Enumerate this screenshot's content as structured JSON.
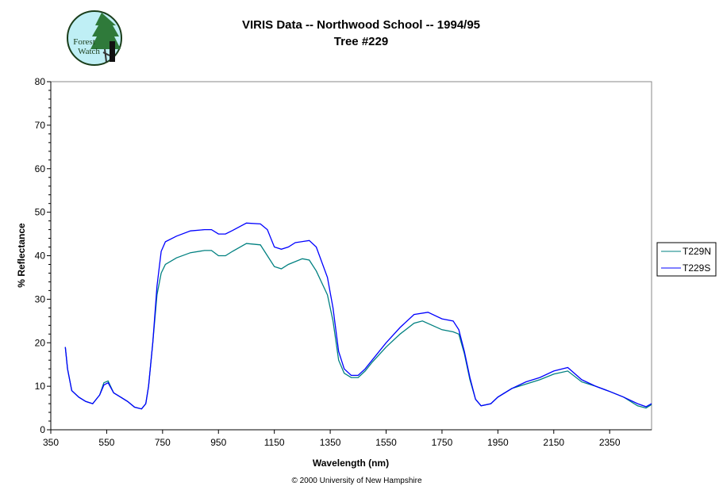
{
  "logo": {
    "text": "Forest Watch"
  },
  "footer": "© 2000 University of New Hampshire",
  "chart_data": {
    "type": "line",
    "title": "VIRIS Data -- Northwood School -- 1994/95",
    "subtitle": "Tree #229",
    "xlabel": "Wavelength (nm)",
    "ylabel": "% Reflectance",
    "xlim": [
      350,
      2500
    ],
    "ylim": [
      0,
      80
    ],
    "xticks": [
      350,
      550,
      750,
      950,
      1150,
      1350,
      1550,
      1750,
      1950,
      2150,
      2350
    ],
    "yticks": [
      0,
      10,
      20,
      30,
      40,
      50,
      60,
      70,
      80
    ],
    "grid": false,
    "legend": "right",
    "series": [
      {
        "name": "T229N",
        "color": "#008080",
        "x": [
          402,
          410,
          425,
          450,
          475,
          500,
          525,
          540,
          555,
          575,
          600,
          625,
          650,
          675,
          690,
          700,
          715,
          730,
          745,
          760,
          800,
          850,
          900,
          925,
          950,
          975,
          1000,
          1050,
          1100,
          1125,
          1150,
          1175,
          1200,
          1250,
          1275,
          1300,
          1340,
          1360,
          1380,
          1400,
          1425,
          1450,
          1475,
          1500,
          1550,
          1600,
          1650,
          1680,
          1750,
          1790,
          1810,
          1830,
          1850,
          1870,
          1890,
          1925,
          1950,
          2000,
          2050,
          2100,
          2150,
          2200,
          2250,
          2300,
          2350,
          2400,
          2450,
          2480,
          2500
        ],
        "y": [
          19,
          14,
          9,
          7.5,
          6.5,
          6,
          8,
          10.8,
          11.2,
          8.5,
          7.5,
          6.5,
          5.2,
          4.8,
          6,
          10,
          20,
          31,
          36,
          38,
          39.5,
          40.7,
          41.2,
          41.2,
          40,
          40,
          41,
          42.8,
          42.5,
          40,
          37.5,
          37,
          38,
          39.3,
          39,
          36.5,
          31,
          25,
          16,
          13,
          12,
          12,
          13.5,
          15.5,
          19,
          22,
          24.5,
          25,
          23,
          22.5,
          22,
          17.5,
          11.5,
          7,
          5.5,
          6,
          7.5,
          9.5,
          10.5,
          11.5,
          12.8,
          13.5,
          11,
          10,
          8.8,
          7.5,
          5.5,
          5,
          5.8
        ]
      },
      {
        "name": "T229S",
        "color": "#0000ff",
        "x": [
          402,
          410,
          425,
          450,
          475,
          500,
          525,
          540,
          555,
          575,
          600,
          625,
          650,
          675,
          690,
          700,
          715,
          730,
          745,
          760,
          800,
          850,
          900,
          925,
          950,
          975,
          1000,
          1050,
          1100,
          1125,
          1150,
          1175,
          1200,
          1225,
          1275,
          1300,
          1340,
          1360,
          1380,
          1400,
          1425,
          1450,
          1475,
          1500,
          1550,
          1600,
          1650,
          1700,
          1750,
          1790,
          1810,
          1830,
          1850,
          1870,
          1890,
          1925,
          1950,
          2000,
          2050,
          2100,
          2150,
          2200,
          2250,
          2300,
          2350,
          2400,
          2450,
          2480,
          2500
        ],
        "y": [
          19,
          14,
          9,
          7.5,
          6.5,
          6,
          8,
          10.3,
          10.8,
          8.5,
          7.5,
          6.5,
          5.2,
          4.8,
          6,
          10,
          20,
          33,
          41,
          43.2,
          44.5,
          45.7,
          46,
          46,
          45,
          45,
          45.8,
          47.5,
          47.3,
          46,
          42,
          41.5,
          42,
          43,
          43.5,
          42,
          35,
          28,
          18,
          14,
          12.5,
          12.5,
          14,
          16,
          20,
          23.5,
          26.5,
          27,
          25.5,
          25,
          23,
          18,
          12,
          7,
          5.5,
          6,
          7.5,
          9.5,
          11,
          12,
          13.5,
          14.3,
          11.5,
          10,
          8.8,
          7.5,
          6,
          5.3,
          6
        ]
      }
    ]
  }
}
